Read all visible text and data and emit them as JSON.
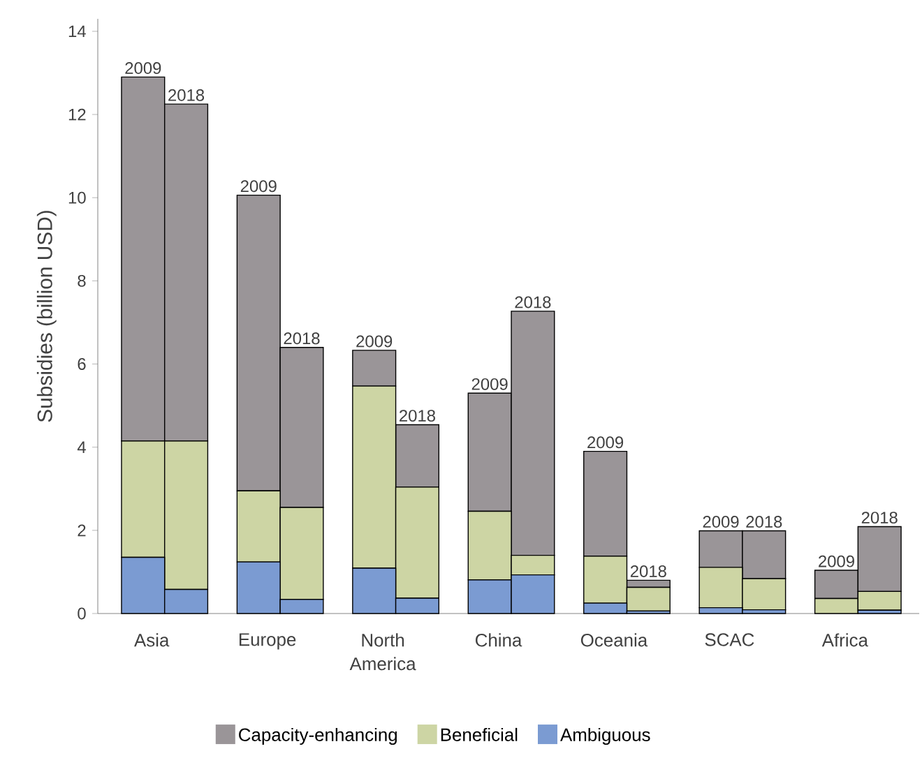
{
  "chart_data": {
    "type": "bar",
    "stacked": true,
    "ylabel": "Subsidies  (billion USD)",
    "categories": [
      "Asia",
      null,
      "Europe",
      null,
      "North America",
      null,
      "China",
      null,
      "Oceania",
      null,
      "SCAC",
      null,
      "Africa",
      null
    ],
    "series": [
      {
        "name": "Ambiguous",
        "color": "#7b9bd2",
        "values": [
          1.35,
          0.58,
          1.24,
          0.34,
          1.09,
          0.37,
          0.81,
          0.93,
          0.25,
          0.06,
          0.14,
          0.09,
          null,
          0.08
        ]
      },
      {
        "name": "Beneficial",
        "color": "#cdd5a4",
        "values": [
          2.8,
          3.57,
          1.71,
          2.21,
          4.38,
          2.67,
          1.65,
          0.47,
          1.13,
          0.57,
          0.97,
          0.75,
          0.36,
          0.45
        ]
      },
      {
        "name": "Capacity-enhancing",
        "color": "#9a9598",
        "values": [
          8.75,
          8.1,
          7.11,
          3.85,
          0.86,
          1.5,
          2.84,
          5.87,
          2.52,
          0.17,
          0.88,
          1.15,
          0.68,
          1.56
        ]
      }
    ],
    "annotations": [
      {
        "text": "2009",
        "x": "Asia",
        "y": 12.9
      },
      {
        "text": "2018",
        "y": 12.25
      },
      {
        "text": "2009",
        "x": "Europe",
        "y": 10.06
      },
      {
        "text": "2018",
        "y": 6.4
      },
      {
        "text": "2009",
        "x": "North America",
        "y": 6.33
      },
      {
        "text": "2018",
        "y": 4.54
      },
      {
        "text": "2009",
        "x": "China",
        "y": 5.3
      },
      {
        "text": "2018",
        "y": 7.27
      },
      {
        "text": "2009",
        "x": "Oceania",
        "y": 3.9
      },
      {
        "text": "2018",
        "y": 0.8
      },
      {
        "text": "2009",
        "x": "SCAC",
        "y": 1.99
      },
      {
        "text": "2018",
        "y": 1.99
      },
      {
        "text": "2009",
        "x": "Africa",
        "y": 1.04
      },
      {
        "text": "2018",
        "y": 2.09
      }
    ],
    "ylim": [
      0,
      14.3
    ],
    "yticks": [
      0,
      2,
      4,
      6,
      8,
      10,
      12,
      14
    ],
    "legend": "bottom"
  }
}
